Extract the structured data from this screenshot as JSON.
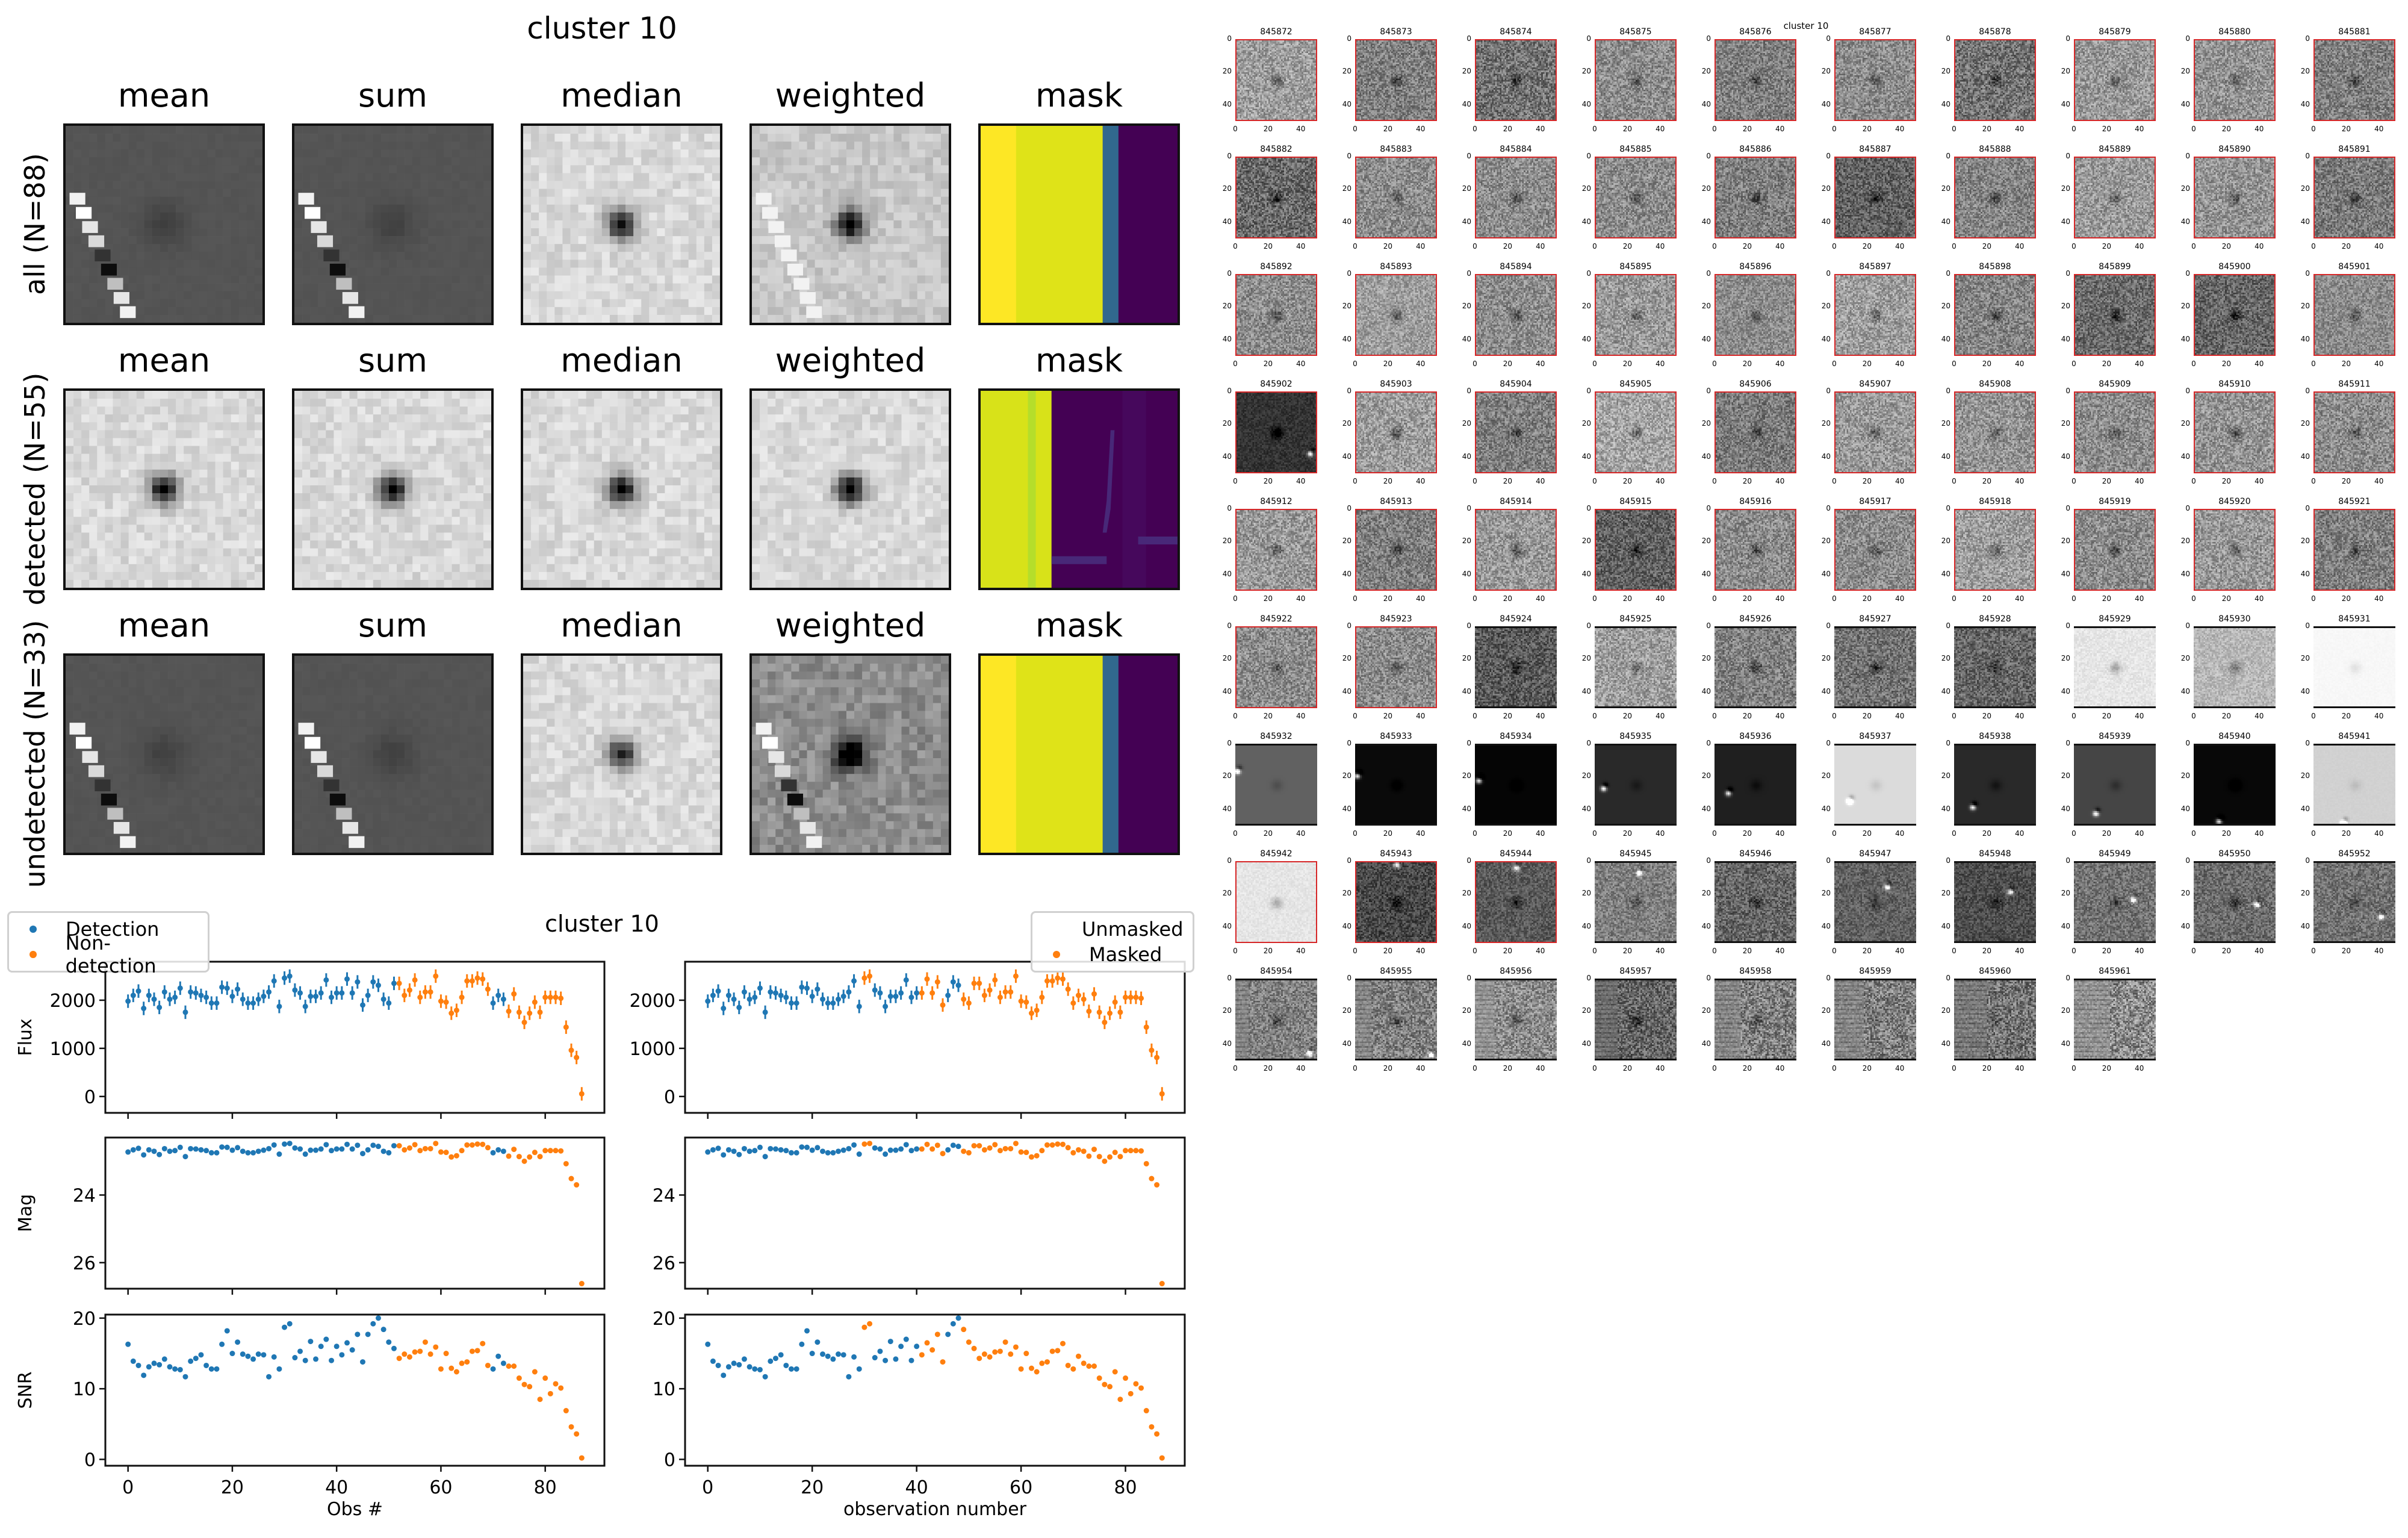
{
  "figure_title": "cluster 10",
  "stacks": {
    "columns": [
      "mean",
      "sum",
      "median",
      "weighted",
      "mask"
    ],
    "rows": [
      {
        "label": "all (N=88)",
        "kind": "all"
      },
      {
        "label": "detected (N=55)",
        "kind": "detected"
      },
      {
        "label": "undetected (N=33)",
        "kind": "undetected"
      }
    ]
  },
  "lightcurves": {
    "title": "cluster 10",
    "colors": {
      "blue": "#1f77b4",
      "orange": "#ff7f0e"
    },
    "left_legend": [
      "Detection",
      "Non-detection"
    ],
    "right_legend": [
      "Unmasked",
      "Masked"
    ],
    "left_xlabel": "Obs #",
    "right_xlabel": "observation number"
  },
  "chart_data": [
    {
      "type": "scatter",
      "panel": "flux",
      "ylabel": "Flux",
      "xlim": [
        -4.35,
        91.35
      ],
      "ylim": [
        -340,
        2800
      ],
      "yticks": [
        0,
        1000,
        2000
      ],
      "xticks": [
        0,
        20,
        40,
        60,
        80
      ],
      "error": 140,
      "x": "obs index 0..87",
      "values": [
        1980,
        2100,
        2190,
        1830,
        2100,
        2020,
        1850,
        2170,
        2020,
        2060,
        2250,
        1750,
        2170,
        2150,
        2100,
        2060,
        1940,
        1940,
        2270,
        2250,
        2080,
        2230,
        2020,
        1940,
        1940,
        2020,
        2080,
        2170,
        2400,
        1870,
        2460,
        2500,
        2210,
        2150,
        1870,
        2080,
        2080,
        2150,
        2420,
        2060,
        2150,
        2150,
        2440,
        2150,
        2380,
        1900,
        2100,
        2380,
        2310,
        2020,
        1940,
        2350,
        2350,
        2100,
        2210,
        2420,
        2060,
        2170,
        2170,
        2500,
        1980,
        1960,
        1730,
        1790,
        2060,
        2400,
        2400,
        2460,
        2440,
        2230,
        1940,
        2100,
        2020,
        1770,
        2130,
        1750,
        1540,
        1730,
        1960,
        1750,
        2060,
        2060,
        2060,
        2040,
        1440,
        960,
        810,
        55
      ]
    },
    {
      "type": "scatter",
      "panel": "mag",
      "ylabel": "Mag",
      "ylim": [
        26.77,
        22.3
      ],
      "yticks": [
        24,
        26
      ],
      "xticks": [
        0,
        20,
        40,
        60,
        80
      ],
      "zeropoint": 30.97,
      "values": "derived: zeropoint - 2.5*log10(flux)"
    },
    {
      "type": "scatter",
      "panel": "snr",
      "ylabel": "SNR",
      "ylim": [
        -0.9,
        20.5
      ],
      "yticks": [
        0,
        10,
        20
      ],
      "xticks": [
        0,
        20,
        40,
        60,
        80
      ],
      "values": [
        16.3,
        13.9,
        13.3,
        11.9,
        13.1,
        13.6,
        13.4,
        14.2,
        13.1,
        12.8,
        12.7,
        11.7,
        13.9,
        14.3,
        14.8,
        13.3,
        12.8,
        12.8,
        16.3,
        18.2,
        15.0,
        16.6,
        14.9,
        14.6,
        14.2,
        14.9,
        14.8,
        11.7,
        14.5,
        12.8,
        18.7,
        19.2,
        14.4,
        15.3,
        14.0,
        16.7,
        14.2,
        16.0,
        17.0,
        14.0,
        16.0,
        14.8,
        16.5,
        15.5,
        17.7,
        13.8,
        17.7,
        19.2,
        20.0,
        18.4,
        16.6,
        15.7,
        14.3,
        14.9,
        14.5,
        15.2,
        15.3,
        16.6,
        14.9,
        15.9,
        12.8,
        15.0,
        12.9,
        12.4,
        13.6,
        13.8,
        15.3,
        15.4,
        16.4,
        13.3,
        12.8,
        14.6,
        13.6,
        13.2,
        13.2,
        11.5,
        10.6,
        10.3,
        12.4,
        8.5,
        11.5,
        9.3,
        10.7,
        10.1,
        6.9,
        4.6,
        3.6,
        0.2
      ]
    }
  ],
  "classification": {
    "detected_ranges": [
      [
        0,
        51
      ],
      [
        70,
        72
      ]
    ],
    "masked_ranges": [
      [
        30,
        31
      ],
      [
        41,
        45
      ],
      [
        49,
        87
      ]
    ]
  },
  "thumbnails": {
    "title": "cluster 10",
    "tick_labels": [
      "0",
      "20",
      "40"
    ],
    "detected_border_color": "#d62728",
    "ids": [
      "845872",
      "845873",
      "845874",
      "845875",
      "845876",
      "845877",
      "845878",
      "845879",
      "845880",
      "845881",
      "845882",
      "845883",
      "845884",
      "845885",
      "845886",
      "845887",
      "845888",
      "845889",
      "845890",
      "845891",
      "845892",
      "845893",
      "845894",
      "845895",
      "845896",
      "845897",
      "845898",
      "845899",
      "845900",
      "845901",
      "845902",
      "845903",
      "845904",
      "845905",
      "845906",
      "845907",
      "845908",
      "845909",
      "845910",
      "845911",
      "845912",
      "845913",
      "845914",
      "845915",
      "845916",
      "845917",
      "845918",
      "845919",
      "845920",
      "845921",
      "845922",
      "845923",
      "845924",
      "845925",
      "845926",
      "845927",
      "845928",
      "845929",
      "845930",
      "845931",
      "845932",
      "845933",
      "845934",
      "845935",
      "845936",
      "845937",
      "845938",
      "845939",
      "845940",
      "845941",
      "845942",
      "845943",
      "845944",
      "845945",
      "845946",
      "845947",
      "845948",
      "845949",
      "845950",
      "845952",
      "845954",
      "845955",
      "845956",
      "845957",
      "845958",
      "845959",
      "845960",
      "845961"
    ],
    "backgrounds": [
      0.62,
      0.5,
      0.45,
      0.55,
      0.5,
      0.55,
      0.45,
      0.6,
      0.58,
      0.5,
      0.42,
      0.55,
      0.55,
      0.55,
      0.5,
      0.38,
      0.52,
      0.6,
      0.58,
      0.48,
      0.55,
      0.62,
      0.55,
      0.6,
      0.55,
      0.62,
      0.52,
      0.42,
      0.4,
      0.55,
      0.2,
      0.62,
      0.5,
      0.65,
      0.48,
      0.6,
      0.58,
      0.55,
      0.58,
      0.55,
      0.6,
      0.5,
      0.6,
      0.38,
      0.55,
      0.55,
      0.62,
      0.55,
      0.6,
      0.5,
      0.55,
      0.55,
      0.35,
      0.62,
      0.5,
      0.45,
      0.4,
      0.9,
      0.72,
      0.97,
      0.38,
      0.04,
      0.02,
      0.16,
      0.12,
      0.86,
      0.16,
      0.27,
      0.03,
      0.82,
      0.9,
      0.28,
      0.35,
      0.5,
      0.4,
      0.38,
      0.3,
      0.45,
      0.42,
      0.45,
      0.5,
      0.5,
      0.55,
      0.4,
      0.5,
      0.5,
      0.45,
      0.55
    ],
    "noise": [
      0.35,
      0.35,
      0.4,
      0.35,
      0.35,
      0.35,
      0.4,
      0.35,
      0.35,
      0.35,
      0.4,
      0.35,
      0.35,
      0.35,
      0.35,
      0.35,
      0.35,
      0.35,
      0.35,
      0.35,
      0.35,
      0.3,
      0.35,
      0.35,
      0.3,
      0.35,
      0.35,
      0.35,
      0.35,
      0.3,
      0.15,
      0.35,
      0.35,
      0.35,
      0.35,
      0.35,
      0.35,
      0.35,
      0.35,
      0.35,
      0.35,
      0.35,
      0.35,
      0.35,
      0.35,
      0.35,
      0.35,
      0.35,
      0.35,
      0.35,
      0.35,
      0.35,
      0.35,
      0.35,
      0.35,
      0.35,
      0.35,
      0.1,
      0.2,
      0.02,
      0.0,
      0.0,
      0.0,
      0.0,
      0.0,
      0.0,
      0.0,
      0.0,
      0.0,
      0.02,
      0.08,
      0.3,
      0.25,
      0.3,
      0.35,
      0.25,
      0.25,
      0.3,
      0.3,
      0.3,
      0.35,
      0.4,
      0.4,
      0.4,
      0.45,
      0.45,
      0.45,
      0.5
    ],
    "bright_sources": {
      "30": [
        46,
        38
      ],
      "60": [
        1,
        16
      ],
      "61": [
        1,
        19
      ],
      "62": [
        2,
        22
      ],
      "63": [
        5,
        27
      ],
      "64": [
        8,
        30
      ],
      "65": [
        9,
        35
      ],
      "66": [
        11,
        39
      ],
      "67": [
        13,
        43
      ],
      "68": [
        15,
        48
      ],
      "69": [
        18,
        49
      ],
      "71": [
        25,
        1
      ],
      "72": [
        25,
        3
      ],
      "73": [
        27,
        6
      ],
      "75": [
        32,
        15
      ],
      "76": [
        34,
        18
      ],
      "77": [
        36,
        23
      ],
      "78": [
        38,
        26
      ],
      "79": [
        41,
        34
      ],
      "80": [
        45,
        46
      ],
      "81": [
        46,
        47
      ]
    }
  }
}
